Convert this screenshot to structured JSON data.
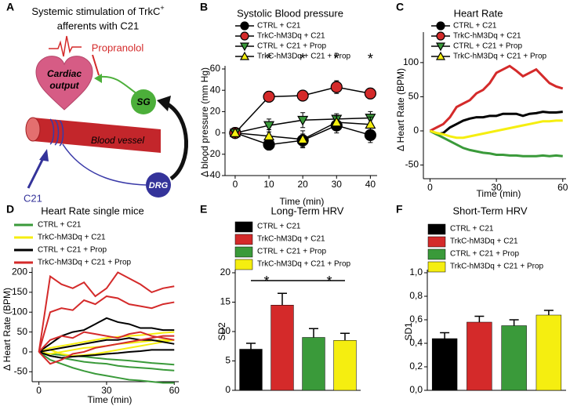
{
  "diagram": {
    "panel": "A",
    "title_line1": "Systemic stimulation of TrkC",
    "title_sup": "+",
    "title_line2": "afferents with C21",
    "drug": "Propranolol",
    "heart_label": [
      "Cardiac",
      "output"
    ],
    "sg": "SG",
    "vessel": "Blood vessel",
    "drg": "DRG",
    "c21": "C21"
  },
  "chart_data": [
    {
      "type": "line",
      "panel": "B",
      "title": "Systolic Blood pressure",
      "x_label": "Time (min)",
      "y_label": "Δ blood pressure (mm Hg)",
      "x": [
        0,
        10,
        20,
        30,
        40
      ],
      "xlim": [
        -3,
        42
      ],
      "xticks": [
        0,
        10,
        20,
        30,
        40
      ],
      "ylim": [
        -40,
        60
      ],
      "yticks": [
        -40,
        -20,
        0,
        20,
        40,
        60
      ],
      "show_markers": true,
      "series": [
        {
          "name": "CTRL + C21",
          "color": "#000000",
          "marker": "circle",
          "values": [
            0,
            -11,
            -7,
            7,
            -2
          ],
          "errors": [
            1,
            5,
            6,
            7,
            7
          ]
        },
        {
          "name": "TrkC-hM3Dq + C21",
          "color": "#d42a2a",
          "marker": "circle",
          "values": [
            0,
            34,
            35,
            43,
            37
          ],
          "errors": [
            1,
            5,
            4,
            6,
            5
          ]
        },
        {
          "name": "CTRL + C21 + Prop",
          "color": "#3a9a3a",
          "marker": "triangle-down",
          "values": [
            0,
            7,
            12,
            13,
            14
          ],
          "errors": [
            1,
            6,
            7,
            5,
            6
          ]
        },
        {
          "name": "TrkC-hM3Dq + C21 + Prop",
          "color": "#f5ee10",
          "marker": "triangle-up",
          "values": [
            0,
            -3,
            -6,
            10,
            8
          ],
          "errors": [
            1,
            6,
            8,
            6,
            7
          ]
        }
      ],
      "annotations": [
        {
          "x": 10,
          "text": "*"
        },
        {
          "x": 20,
          "text": "*"
        },
        {
          "x": 30,
          "text": "*"
        },
        {
          "x": 40,
          "text": "*"
        }
      ]
    },
    {
      "type": "line",
      "panel": "C",
      "title": "Heart Rate",
      "x_label": "Time (min)",
      "y_label": "Δ Heart Rate (BPM)",
      "x": [
        0,
        3,
        6,
        9,
        12,
        15,
        18,
        21,
        24,
        27,
        30,
        33,
        36,
        39,
        42,
        45,
        48,
        51,
        54,
        57,
        60
      ],
      "xlim": [
        -3,
        61.5
      ],
      "xticks": [
        0,
        30,
        60
      ],
      "ylim": [
        -70,
        140
      ],
      "yticks": [
        -50,
        0,
        50,
        100
      ],
      "show_markers": false,
      "series": [
        {
          "name": "CTRL + C21",
          "color": "#000000",
          "marker": "circle",
          "values": [
            0,
            -5,
            -3,
            5,
            10,
            15,
            18,
            20,
            20,
            22,
            22,
            25,
            25,
            25,
            22,
            25,
            26,
            28,
            27,
            27,
            28
          ]
        },
        {
          "name": "TrkC-hM3Dq + C21",
          "color": "#d42a2a",
          "marker": "circle",
          "values": [
            0,
            5,
            10,
            20,
            35,
            40,
            45,
            55,
            60,
            70,
            85,
            90,
            95,
            88,
            80,
            85,
            90,
            80,
            70,
            65,
            62
          ]
        },
        {
          "name": "CTRL + C21 + Prop",
          "color": "#3a9a3a",
          "marker": "triangle-down",
          "values": [
            0,
            -5,
            -10,
            -15,
            -20,
            -25,
            -28,
            -30,
            -32,
            -33,
            -35,
            -35,
            -36,
            -36,
            -37,
            -37,
            -37,
            -36,
            -37,
            -36,
            -37
          ]
        },
        {
          "name": "TrkC-hM3Dq + C21 + Prop",
          "color": "#f5ee10",
          "marker": "triangle-up",
          "values": [
            0,
            -3,
            -5,
            -8,
            -10,
            -10,
            -8,
            -6,
            -4,
            -2,
            0,
            2,
            4,
            6,
            8,
            10,
            12,
            14,
            14,
            15,
            15
          ]
        }
      ]
    },
    {
      "type": "line",
      "panel": "D",
      "title": "Heart Rate single mice",
      "x_label": "Time (min)",
      "y_label": "Δ Heart Rate (BPM)",
      "x": [
        0,
        5,
        10,
        15,
        20,
        25,
        30,
        35,
        40,
        45,
        50,
        55,
        60
      ],
      "xlim": [
        -3,
        62
      ],
      "xticks": [
        0,
        30,
        60
      ],
      "ylim": [
        -75,
        205
      ],
      "yticks": [
        -50,
        0,
        50,
        100,
        150,
        200
      ],
      "groups": [
        {
          "name": "CTRL + C21",
          "color": "#3a9a3a",
          "lines": [
            [
              0,
              -10,
              -15,
              -20,
              -25,
              -28,
              -30,
              -35,
              -38,
              -40,
              -42,
              -45,
              -47
            ],
            [
              0,
              -20,
              -30,
              -40,
              -48,
              -55,
              -60,
              -65,
              -70,
              -72,
              -75,
              -78,
              -78
            ],
            [
              0,
              -5,
              -8,
              -10,
              -12,
              -15,
              -18,
              -20,
              -22,
              -25,
              -28,
              -30,
              -32
            ]
          ]
        },
        {
          "name": "TrkC-hM3Dq + C21",
          "color": "#f5ee10",
          "lines": [
            [
              0,
              10,
              15,
              20,
              25,
              30,
              35,
              38,
              40,
              42,
              45,
              48,
              50
            ],
            [
              0,
              -5,
              0,
              5,
              10,
              12,
              15,
              20,
              22,
              25,
              28,
              30,
              30
            ],
            [
              0,
              5,
              -5,
              -10,
              -8,
              -5,
              0,
              5,
              10,
              15,
              20,
              25,
              30
            ]
          ]
        },
        {
          "name": "CTRL + C21 + Prop",
          "color": "#000000",
          "lines": [
            [
              0,
              20,
              40,
              50,
              55,
              70,
              85,
              75,
              70,
              60,
              60,
              55,
              55
            ],
            [
              0,
              5,
              10,
              15,
              20,
              25,
              30,
              30,
              35,
              30,
              30,
              25,
              20
            ],
            [
              0,
              -10,
              -15,
              -12,
              -10,
              -8,
              -5,
              -3,
              0,
              2,
              5,
              5,
              5
            ]
          ]
        },
        {
          "name": "TrkC-hM3Dq + C21 + Prop",
          "color": "#d42a2a",
          "lines": [
            [
              0,
              190,
              170,
              160,
              175,
              140,
              160,
              200,
              185,
              170,
              150,
              160,
              165
            ],
            [
              0,
              100,
              110,
              105,
              130,
              120,
              140,
              135,
              120,
              115,
              110,
              120,
              125
            ],
            [
              0,
              30,
              40,
              35,
              50,
              45,
              40,
              35,
              45,
              50,
              40,
              35,
              30
            ],
            [
              0,
              -30,
              -20,
              -5,
              0,
              10,
              15,
              20,
              25,
              30,
              35,
              40,
              40
            ]
          ]
        }
      ]
    },
    {
      "type": "bar",
      "panel": "E",
      "title": "Long-Term HRV",
      "y_label": "SD2",
      "ylim": [
        0,
        20
      ],
      "yticks": [
        0,
        5,
        10,
        15,
        20
      ],
      "series": [
        {
          "name": "CTRL + C21",
          "color": "#000000",
          "values": [
            7
          ],
          "errors": [
            1
          ]
        },
        {
          "name": "TrkC-hM3Dq + C21",
          "color": "#d42a2a",
          "values": [
            14.5
          ],
          "errors": [
            2
          ]
        },
        {
          "name": "CTRL + C21 + Prop",
          "color": "#3a9a3a",
          "values": [
            9
          ],
          "errors": [
            1.5
          ]
        },
        {
          "name": "TrkC-hM3Dq + C21 + Prop",
          "color": "#f5ee10",
          "values": [
            8.5
          ],
          "errors": [
            1.2
          ]
        }
      ],
      "brackets": [
        {
          "between": [
            0,
            1
          ],
          "label": "*"
        },
        {
          "between": [
            2,
            3
          ],
          "label": "*"
        }
      ]
    },
    {
      "type": "bar",
      "panel": "F",
      "title": "Short-Term HRV",
      "y_label": "SD1",
      "ylim": [
        0,
        1
      ],
      "yticks": [
        {
          "value": 0,
          "label": "0,0"
        },
        {
          "value": 0.2,
          "label": "0,2"
        },
        {
          "value": 0.4,
          "label": "0,4"
        },
        {
          "value": 0.6,
          "label": "0,6"
        },
        {
          "value": 0.8,
          "label": "0,8"
        },
        {
          "value": 1,
          "label": "1,0"
        }
      ],
      "series": [
        {
          "name": "CTRL + C21",
          "color": "#000000",
          "values": [
            0.44
          ],
          "errors": [
            0.05
          ]
        },
        {
          "name": "TrkC-hM3Dq + C21",
          "color": "#d42a2a",
          "values": [
            0.58
          ],
          "errors": [
            0.05
          ]
        },
        {
          "name": "CTRL + C21 + Prop",
          "color": "#3a9a3a",
          "values": [
            0.55
          ],
          "errors": [
            0.05
          ]
        },
        {
          "name": "TrkC-hM3Dq + C21 + Prop",
          "color": "#f5ee10",
          "values": [
            0.64
          ],
          "errors": [
            0.04
          ]
        }
      ]
    }
  ]
}
